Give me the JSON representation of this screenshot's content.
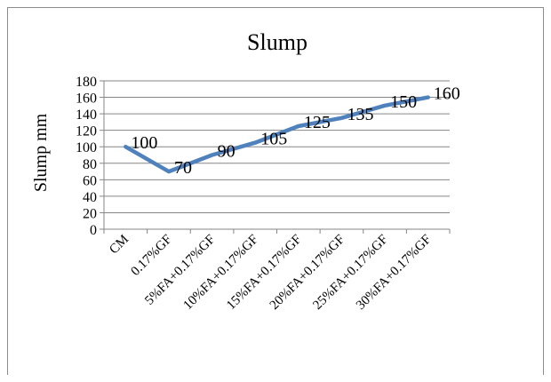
{
  "chart_data": {
    "type": "line",
    "title": "Slump",
    "xlabel": "",
    "ylabel": "Slump mm",
    "categories": [
      "CM",
      "0.17%GF",
      "5%FA+0.17%GF",
      "10%FA+0.17%GF",
      "15%FA+0.17%GF",
      "20%FA+0.17%GF",
      "25%FA+0.17%GF",
      "30%FA+0.17%GF"
    ],
    "series": [
      {
        "values": [
          100,
          70,
          90,
          105,
          125,
          135,
          150,
          160
        ]
      }
    ],
    "data_labels": [
      "100",
      "70",
      "90",
      "105",
      "125",
      "135",
      "150",
      "160"
    ],
    "ylim": [
      0,
      180
    ],
    "yticks": [
      0,
      20,
      40,
      60,
      80,
      100,
      120,
      140,
      160,
      180
    ],
    "grid": true,
    "legend": "none",
    "colors": {
      "line": "#4f81bd",
      "grid": "#868686",
      "axis": "#868686"
    }
  }
}
